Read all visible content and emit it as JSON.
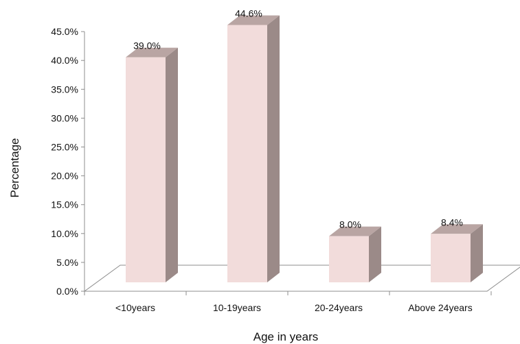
{
  "chart_data": {
    "type": "bar",
    "style": "3d-column",
    "categories": [
      "<10years",
      "10-19years",
      "20-24years",
      "Above 24years"
    ],
    "values": [
      39.0,
      44.6,
      8.0,
      8.4
    ],
    "data_labels": [
      "39.0%",
      "44.6%",
      "8.0%",
      "8.4%"
    ],
    "xlabel": "Age in years",
    "ylabel": "Percentage",
    "ylim": [
      0,
      45
    ],
    "ytick_values": [
      0,
      5,
      10,
      15,
      20,
      25,
      30,
      35,
      40,
      45
    ],
    "ytick_labels": [
      "0.0%",
      "5.0%",
      "10.0%",
      "15.0%",
      "20.0%",
      "25.0%",
      "30.0%",
      "35.0%",
      "40.0%",
      "45.0%"
    ],
    "grid": false,
    "legend": "none",
    "colors": {
      "bar_front": "#f2dcdb",
      "bar_side": "#9b8a88",
      "bar_top": "#b9a5a3",
      "axis": "#8c8c8c"
    }
  }
}
